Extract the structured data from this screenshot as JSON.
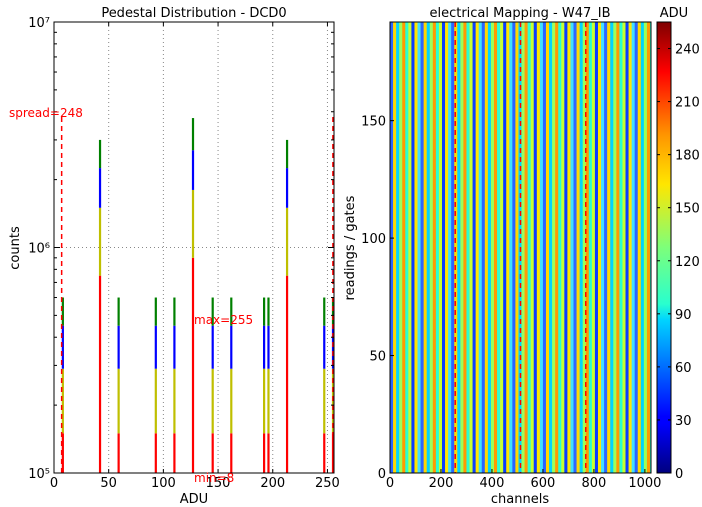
{
  "chart_data": [
    {
      "type": "bar",
      "title": "Pedestal Distribution - DCD0",
      "xlabel": "ADU",
      "ylabel": "counts",
      "yscale": "log",
      "xlim": [
        0,
        256
      ],
      "ylim": [
        100000,
        10000000
      ],
      "grid": true,
      "x_ticks": [
        "0",
        "50",
        "100",
        "150",
        "200",
        "250"
      ],
      "y_ticks": [
        "10⁵",
        "10⁶",
        "10⁷"
      ],
      "colors": [
        "#ff0000",
        "#bfbf00",
        "#0000ff",
        "#008000"
      ],
      "stacked_bars": [
        {
          "x": 8,
          "segments": [
            150000,
            290000,
            450000,
            600000
          ]
        },
        {
          "x": 42,
          "segments": [
            750000,
            1500000,
            2250000,
            3000000
          ]
        },
        {
          "x": 59,
          "segments": [
            150000,
            290000,
            450000,
            600000
          ]
        },
        {
          "x": 93,
          "segments": [
            150000,
            290000,
            450000,
            600000
          ]
        },
        {
          "x": 110,
          "segments": [
            150000,
            290000,
            450000,
            600000
          ]
        },
        {
          "x": 127,
          "segments": [
            900000,
            1800000,
            2700000,
            3750000
          ]
        },
        {
          "x": 145,
          "segments": [
            150000,
            290000,
            450000,
            600000
          ]
        },
        {
          "x": 162,
          "segments": [
            150000,
            290000,
            450000,
            600000
          ]
        },
        {
          "x": 192,
          "segments": [
            150000,
            290000,
            450000,
            600000
          ]
        },
        {
          "x": 196,
          "segments": [
            150000,
            290000,
            450000,
            600000
          ]
        },
        {
          "x": 213,
          "segments": [
            750000,
            1500000,
            2250000,
            3000000
          ]
        },
        {
          "x": 247,
          "segments": [
            150000,
            290000,
            450000,
            600000
          ]
        },
        {
          "x": 255,
          "segments": [
            150000,
            290000,
            450000,
            600000
          ]
        }
      ],
      "vlines": [
        7,
        255
      ],
      "annotations": [
        "spread=248",
        "max=255",
        "min=8"
      ]
    },
    {
      "type": "heatmap",
      "title": "electrical Mapping - W47_IB",
      "xlabel": "channels",
      "ylabel": "readings / gates",
      "xlim": [
        0,
        1024
      ],
      "ylim": [
        0,
        192
      ],
      "x_ticks": [
        "0",
        "200",
        "400",
        "600",
        "800",
        "1000"
      ],
      "y_ticks": [
        "0",
        "50",
        "100",
        "150"
      ],
      "vlines": [
        256,
        512,
        768
      ],
      "colorbar": {
        "label": "ADU",
        "min": 0,
        "max": 255,
        "ticks": [
          "0",
          "30",
          "60",
          "90",
          "120",
          "150",
          "180",
          "210",
          "240"
        ]
      }
    }
  ]
}
